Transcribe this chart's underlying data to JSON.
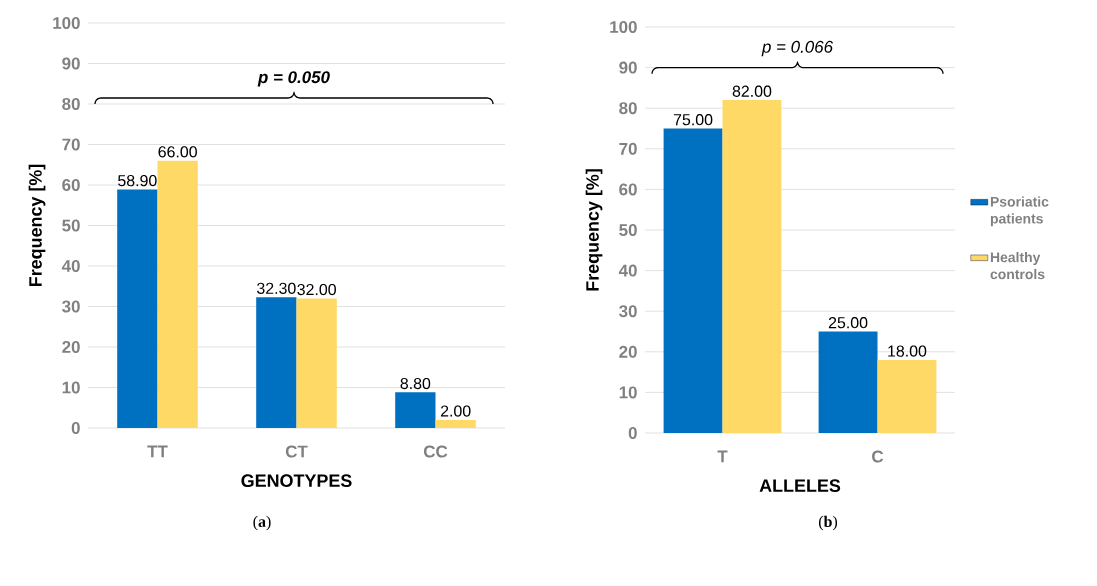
{
  "chart_data": [
    {
      "type": "bar",
      "xlabel": "GENOTYPES",
      "ylabel": "Frequency [%]",
      "categories": [
        "TT",
        "CT",
        "CC"
      ],
      "series": [
        {
          "color": "#0070c0",
          "values": [
            58.9,
            32.3,
            8.8
          ],
          "value_labels": [
            "58.90",
            "32.30",
            "8.80"
          ]
        },
        {
          "color": "#ffd966",
          "values": [
            66,
            32,
            2
          ],
          "value_labels": [
            "66.00",
            "32.00",
            "2.00"
          ]
        }
      ],
      "ylim": [
        0,
        100
      ],
      "yticks": [
        0,
        10,
        20,
        30,
        40,
        50,
        60,
        70,
        80,
        90,
        100
      ],
      "grid": "y",
      "legend": false,
      "annotations": [
        "**p = 0.050**",
        "(**a**)"
      ]
    },
    {
      "type": "bar",
      "xlabel": "ALLELES",
      "ylabel": "Frequency [%]",
      "categories": [
        "T",
        "C"
      ],
      "series": [
        {
          "name": "Psoriatic patients",
          "color": "#0070c0",
          "values": [
            75,
            25
          ],
          "value_labels": [
            "75.00",
            "25.00"
          ]
        },
        {
          "name": "Healthy controls",
          "color": "#ffd966",
          "values": [
            82,
            18
          ],
          "value_labels": [
            "82.00",
            "18.00"
          ]
        }
      ],
      "ylim": [
        0,
        100
      ],
      "yticks": [
        0,
        10,
        20,
        30,
        40,
        50,
        60,
        70,
        80,
        90,
        100
      ],
      "grid": "y",
      "legend": "right",
      "annotations": [
        "p = 0.066",
        "(**b**)"
      ]
    }
  ]
}
